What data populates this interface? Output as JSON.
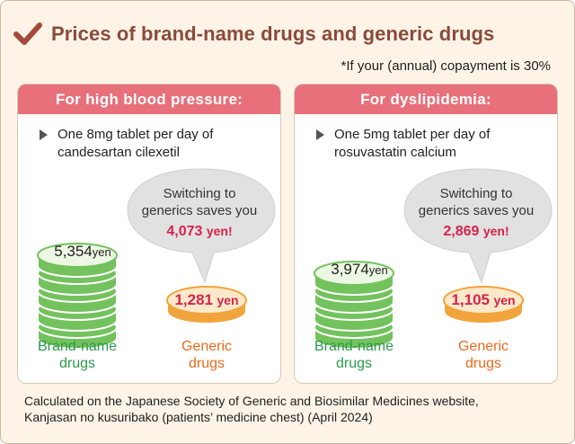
{
  "title": "Prices of brand-name drugs and generic drugs",
  "note": "*If your (annual) copayment is 30%",
  "panels": [
    {
      "header": "For high blood pressure:",
      "bullet": [
        "One 8mg tablet per day of",
        "candesartan cilexetil"
      ],
      "bubble": {
        "line1": "Switching to",
        "line2": "generics saves you",
        "amount": "4,073",
        "unit": "yen!"
      },
      "brand": {
        "price": "5,354",
        "unit": "yen",
        "label1": "Brand-name",
        "label2": "drugs"
      },
      "generic": {
        "price": "1,281",
        "unit": "yen",
        "label1": "Generic",
        "label2": "drugs"
      }
    },
    {
      "header": "For dyslipidemia:",
      "bullet": [
        "One 5mg tablet per day of",
        "rosuvastatin calcium"
      ],
      "bubble": {
        "line1": "Switching to",
        "line2": "generics saves you",
        "amount": "2,869",
        "unit": "yen!"
      },
      "brand": {
        "price": "3,974",
        "unit": "yen",
        "label1": "Brand-name",
        "label2": "drugs"
      },
      "generic": {
        "price": "1,105",
        "unit": "yen",
        "label1": "Generic",
        "label2": "drugs"
      }
    }
  ],
  "footer": [
    "Calculated on the Japanese Society of Generic and Biosimilar Medicines website,",
    "Kanjasan no kusuribako (patients’ medicine chest) (April 2024)"
  ],
  "colors": {
    "title": "#8b4a3a",
    "header": "#e7707a",
    "brand": "#2a9a4a",
    "generic": "#ea6a1c",
    "savings": "#d6224b",
    "check": "#a44a3a"
  }
}
